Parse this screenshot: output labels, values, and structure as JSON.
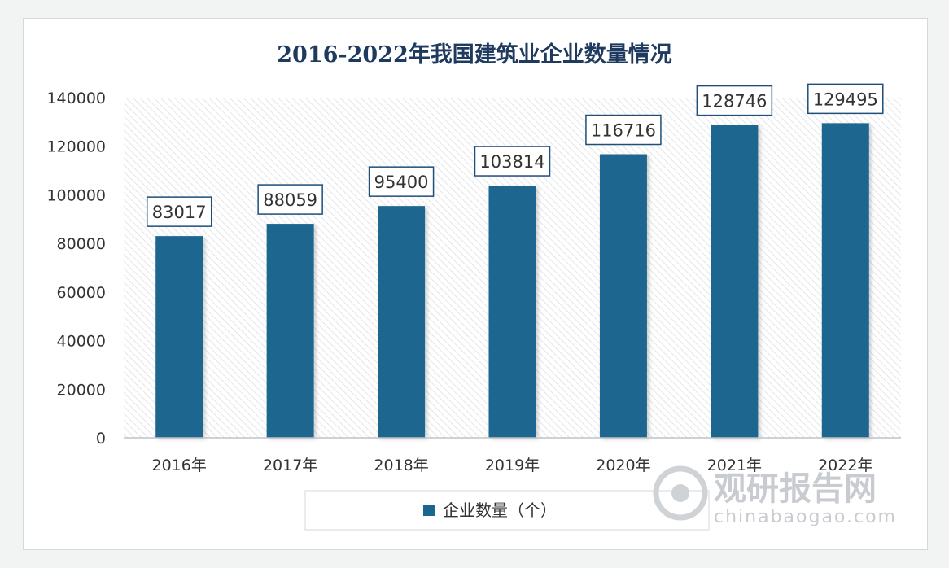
{
  "chart_data": {
    "type": "bar",
    "title": "2016-2022年我国建筑业企业数量情况",
    "categories": [
      "2016年",
      "2017年",
      "2018年",
      "2019年",
      "2020年",
      "2021年",
      "2022年"
    ],
    "series": [
      {
        "name": "企业数量（个）",
        "values": [
          83017,
          88059,
          95400,
          103814,
          116716,
          128746,
          129495
        ]
      }
    ],
    "data_labels": [
      "83017",
      "88059",
      "95400",
      "103814",
      "116716",
      "128746",
      "129495"
    ],
    "yticks": [
      "0",
      "20000",
      "40000",
      "60000",
      "80000",
      "100000",
      "120000",
      "140000"
    ],
    "ylim": [
      0,
      140000
    ],
    "grid": false,
    "legend_position": "bottom-center",
    "colors": {
      "bar": "#1a6690",
      "label_border": "#1f4e79",
      "title": "#1f3a5f"
    }
  },
  "watermark": {
    "cn": "观研报告网",
    "en": "chinabaogao.com"
  }
}
